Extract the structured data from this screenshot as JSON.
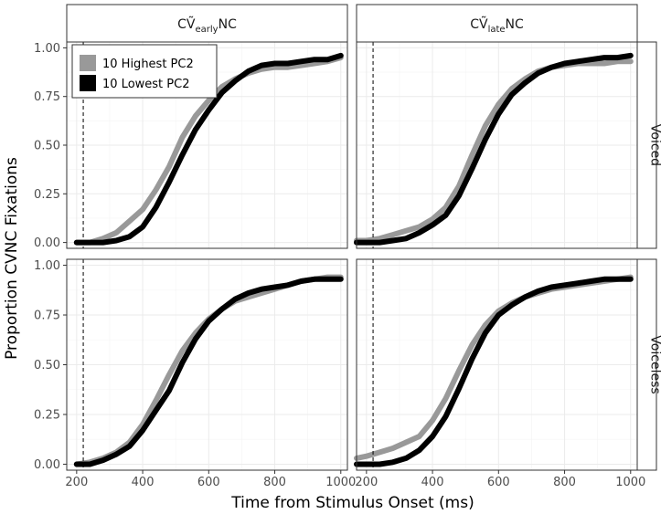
{
  "chart_data": {
    "type": "line",
    "xlabel": "Time from Stimulus Onset (ms)",
    "ylabel": "Proportion CVNC Fixations",
    "xlim": [
      170,
      1020
    ],
    "ylim": [
      -0.03,
      1.03
    ],
    "x_ticks": [
      200,
      400,
      600,
      800,
      1000
    ],
    "y_ticks": [
      "0.00",
      "0.25",
      "0.50",
      "0.75",
      "1.00"
    ],
    "grid": true,
    "vline_x": 220,
    "legend_position": "top-left",
    "facet_cols": [
      {
        "prefix": "CṼ",
        "sub": "early",
        "suffix": "NC"
      },
      {
        "prefix": "CṼ",
        "sub": "late",
        "suffix": "NC"
      }
    ],
    "facet_rows": [
      "Voiced",
      "Voiceless"
    ],
    "series_styles": [
      {
        "name": "10 Highest PC2",
        "color": "#999999"
      },
      {
        "name": "10 Lowest PC2",
        "color": "#000000"
      }
    ],
    "panels": [
      {
        "col": 0,
        "row": 0,
        "series": [
          {
            "name": "10 Highest PC2",
            "x": [
              200,
              240,
              280,
              320,
              360,
              400,
              440,
              480,
              520,
              560,
              600,
              640,
              680,
              720,
              760,
              800,
              840,
              880,
              920,
              960,
              1000
            ],
            "y": [
              0.0,
              0.0,
              0.02,
              0.05,
              0.11,
              0.17,
              0.27,
              0.39,
              0.54,
              0.65,
              0.73,
              0.8,
              0.84,
              0.87,
              0.89,
              0.9,
              0.9,
              0.91,
              0.92,
              0.93,
              0.95
            ]
          },
          {
            "name": "10 Lowest PC2",
            "x": [
              200,
              240,
              280,
              320,
              360,
              400,
              440,
              480,
              520,
              560,
              600,
              640,
              680,
              720,
              760,
              800,
              840,
              880,
              920,
              960,
              1000
            ],
            "y": [
              0.0,
              0.0,
              0.0,
              0.01,
              0.03,
              0.08,
              0.18,
              0.31,
              0.45,
              0.58,
              0.68,
              0.77,
              0.83,
              0.88,
              0.91,
              0.92,
              0.92,
              0.93,
              0.94,
              0.94,
              0.96
            ]
          }
        ]
      },
      {
        "col": 1,
        "row": 0,
        "series": [
          {
            "name": "10 Highest PC2",
            "x": [
              170,
              200,
              240,
              280,
              320,
              360,
              400,
              440,
              480,
              520,
              560,
              600,
              640,
              680,
              720,
              760,
              800,
              840,
              880,
              920,
              960,
              1000
            ],
            "y": [
              0.01,
              0.01,
              0.02,
              0.04,
              0.06,
              0.08,
              0.12,
              0.18,
              0.29,
              0.45,
              0.6,
              0.71,
              0.79,
              0.84,
              0.88,
              0.9,
              0.91,
              0.92,
              0.92,
              0.92,
              0.93,
              0.93
            ]
          },
          {
            "name": "10 Lowest PC2",
            "x": [
              170,
              200,
              240,
              280,
              320,
              360,
              400,
              440,
              480,
              520,
              560,
              600,
              640,
              680,
              720,
              760,
              800,
              840,
              880,
              920,
              960,
              1000
            ],
            "y": [
              0.0,
              0.0,
              0.0,
              0.01,
              0.02,
              0.05,
              0.09,
              0.14,
              0.24,
              0.38,
              0.53,
              0.66,
              0.76,
              0.82,
              0.87,
              0.9,
              0.92,
              0.93,
              0.94,
              0.95,
              0.95,
              0.96
            ]
          }
        ]
      },
      {
        "col": 0,
        "row": 1,
        "series": [
          {
            "name": "10 Highest PC2",
            "x": [
              200,
              240,
              280,
              320,
              360,
              400,
              440,
              480,
              520,
              560,
              600,
              640,
              680,
              720,
              760,
              800,
              840,
              880,
              920,
              960,
              1000
            ],
            "y": [
              0.0,
              0.01,
              0.03,
              0.06,
              0.11,
              0.2,
              0.32,
              0.45,
              0.57,
              0.66,
              0.73,
              0.78,
              0.82,
              0.84,
              0.86,
              0.88,
              0.9,
              0.92,
              0.93,
              0.94,
              0.94
            ]
          },
          {
            "name": "10 Lowest PC2",
            "x": [
              200,
              240,
              280,
              320,
              360,
              400,
              440,
              480,
              520,
              560,
              600,
              640,
              680,
              720,
              760,
              800,
              840,
              880,
              920,
              960,
              1000
            ],
            "y": [
              0.0,
              0.0,
              0.02,
              0.05,
              0.09,
              0.17,
              0.27,
              0.37,
              0.51,
              0.63,
              0.72,
              0.78,
              0.83,
              0.86,
              0.88,
              0.89,
              0.9,
              0.92,
              0.93,
              0.93,
              0.93
            ]
          }
        ]
      },
      {
        "col": 1,
        "row": 1,
        "series": [
          {
            "name": "10 Highest PC2",
            "x": [
              170,
              200,
              240,
              280,
              320,
              360,
              400,
              440,
              480,
              520,
              560,
              600,
              640,
              680,
              720,
              760,
              800,
              840,
              880,
              920,
              960,
              1000
            ],
            "y": [
              0.03,
              0.04,
              0.06,
              0.08,
              0.11,
              0.14,
              0.22,
              0.33,
              0.47,
              0.6,
              0.7,
              0.77,
              0.81,
              0.84,
              0.86,
              0.88,
              0.89,
              0.9,
              0.91,
              0.92,
              0.93,
              0.94
            ]
          },
          {
            "name": "10 Lowest PC2",
            "x": [
              170,
              200,
              240,
              280,
              320,
              360,
              400,
              440,
              480,
              520,
              560,
              600,
              640,
              680,
              720,
              760,
              800,
              840,
              880,
              920,
              960,
              1000
            ],
            "y": [
              0.0,
              0.0,
              0.0,
              0.01,
              0.03,
              0.07,
              0.14,
              0.24,
              0.38,
              0.53,
              0.66,
              0.75,
              0.8,
              0.84,
              0.87,
              0.89,
              0.9,
              0.91,
              0.92,
              0.93,
              0.93,
              0.93
            ]
          }
        ]
      }
    ]
  }
}
